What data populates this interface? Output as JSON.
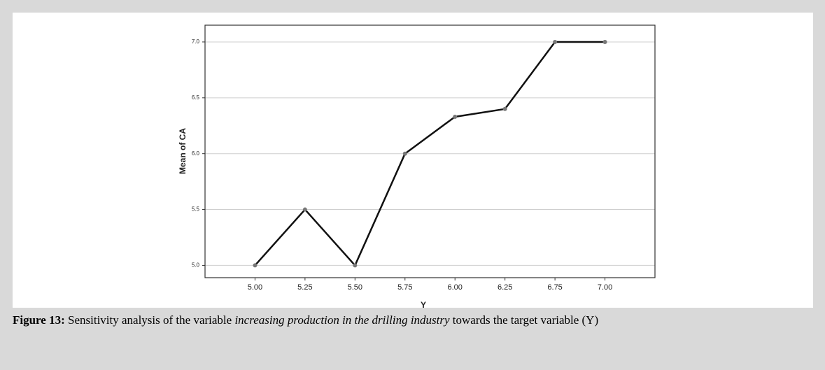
{
  "chart_data": {
    "type": "line",
    "x_label": "Y",
    "y_label": "Mean of CA",
    "categories": [
      "5.00",
      "5.25",
      "5.50",
      "5.75",
      "6.00",
      "6.25",
      "6.75",
      "7.00"
    ],
    "series": [
      {
        "color": "#111111",
        "values": [
          5.0,
          5.5,
          5.0,
          6.0,
          6.33,
          6.4,
          7.0,
          7.0
        ]
      }
    ],
    "ylim": [
      4.89,
      7.15
    ],
    "yticks": [
      {
        "value": 5,
        "label": "5.0"
      },
      5.5,
      {
        "value": 6,
        "label": "6.0"
      },
      6.5,
      {
        "value": 7,
        "label": "7.0"
      }
    ],
    "grid": true
  },
  "caption": {
    "label": "Figure 13:",
    "text_before": "Sensitivity analysis of the variable",
    "italic": "increasing production in the drilling industry",
    "text_after": "towards the target variable (Y)"
  }
}
